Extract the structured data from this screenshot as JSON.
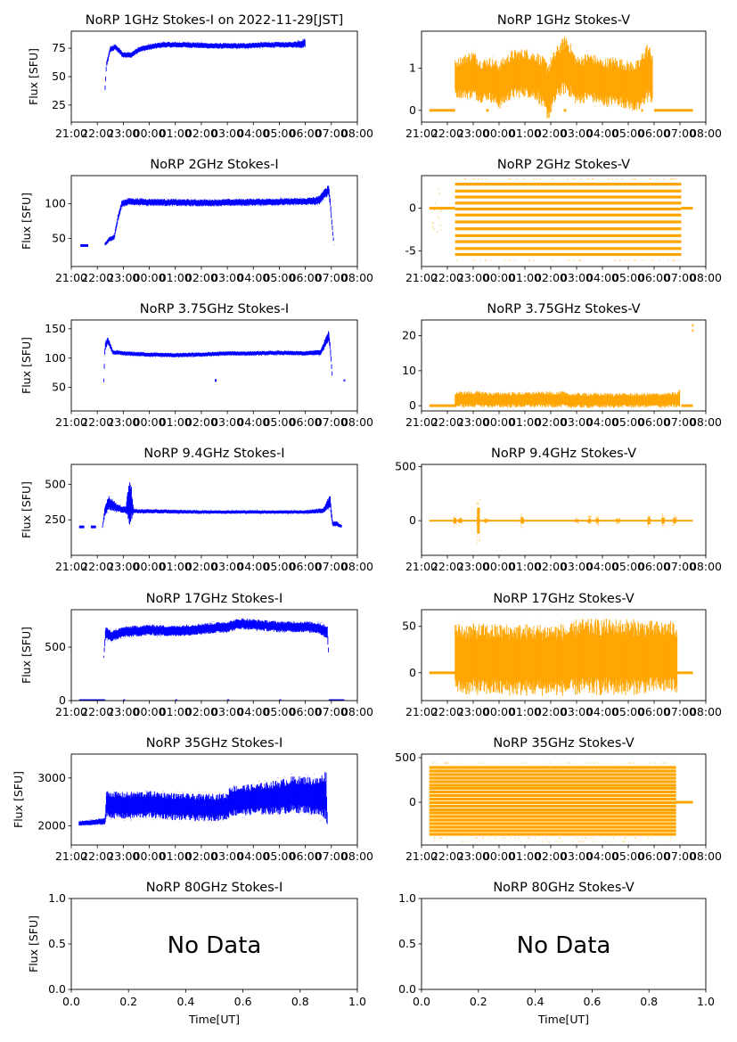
{
  "figure": {
    "x_time_ticks": [
      "21:00",
      "22:00",
      "23:00",
      "00:00",
      "01:00",
      "02:00",
      "03:00",
      "04:00",
      "05:00",
      "06:00",
      "07:00",
      "08:00"
    ],
    "colors": {
      "stokes_i": "#0000ff",
      "stokes_v": "#ffa500",
      "axis": "#000000"
    }
  },
  "chart_data": [
    {
      "id": "i1",
      "type": "scatter",
      "title": "NoRP 1GHz Stokes-I on 2022-11-29[JST]",
      "ylabel": "Flux [SFU]",
      "xlabel": "",
      "xlim": [
        21.0,
        32.0
      ],
      "ylim": [
        10,
        90
      ],
      "yticks": [
        25,
        50,
        75
      ],
      "ytick_labels": [
        "25",
        "50",
        "75"
      ],
      "series": [
        {
          "name": "Stokes-I",
          "band": "poly",
          "x": [
            22.3,
            22.35,
            22.5,
            22.7,
            23.0,
            23.3,
            23.6,
            24.0,
            24.5,
            25.5,
            26.5,
            27.5,
            28.5,
            29.5,
            29.9,
            30.0
          ],
          "y": [
            40,
            60,
            74,
            76,
            69,
            69,
            74,
            76,
            78,
            78,
            77,
            77,
            78,
            78,
            79,
            80
          ],
          "spread": [
            2,
            2,
            2,
            2,
            2,
            2,
            2,
            2,
            2,
            2,
            2,
            2,
            2,
            2,
            3,
            3
          ]
        }
      ]
    },
    {
      "id": "v1",
      "type": "scatter",
      "title": "NoRP 1GHz Stokes-V",
      "ylabel": "",
      "xlabel": "",
      "xlim": [
        21.0,
        32.0
      ],
      "ylim": [
        -0.28,
        1.88
      ],
      "yticks": [
        0,
        1
      ],
      "ytick_labels": [
        "0",
        "1"
      ],
      "series": [
        {
          "name": "Stokes-V",
          "band": "poly",
          "x": [
            22.3,
            22.6,
            23.0,
            23.3,
            23.6,
            24.0,
            24.5,
            25.0,
            25.5,
            25.9,
            26.3,
            26.6,
            27.0,
            27.5,
            28.0,
            28.5,
            29.0,
            29.4,
            29.7,
            29.95
          ],
          "y": [
            0.75,
            0.8,
            0.85,
            0.7,
            0.75,
            0.6,
            0.85,
            0.9,
            0.8,
            0.45,
            0.95,
            1.1,
            0.7,
            0.8,
            0.65,
            0.7,
            0.6,
            0.55,
            0.9,
            0.8
          ],
          "spread": [
            0.35,
            0.4,
            0.45,
            0.4,
            0.4,
            0.45,
            0.45,
            0.45,
            0.45,
            0.55,
            0.5,
            0.55,
            0.45,
            0.45,
            0.45,
            0.45,
            0.45,
            0.5,
            0.55,
            0.5
          ]
        },
        {
          "name": "zero-segments",
          "segments": [
            [
              21.3,
              22.3,
              0
            ],
            [
              23.5,
              23.6,
              0
            ],
            [
              26.5,
              26.6,
              0
            ],
            [
              29.5,
              29.55,
              0
            ],
            [
              30.0,
              31.5,
              0
            ]
          ]
        }
      ]
    },
    {
      "id": "i2",
      "type": "scatter",
      "title": "NoRP 2GHz Stokes-I",
      "ylabel": "Flux [SFU]",
      "xlabel": "",
      "xlim": [
        21.0,
        32.0
      ],
      "ylim": [
        10,
        140
      ],
      "yticks": [
        50,
        100
      ],
      "ytick_labels": [
        "50",
        "100"
      ],
      "series": [
        {
          "name": "Stokes-I",
          "band": "poly",
          "x": [
            22.3,
            22.5,
            22.65,
            22.8,
            22.95,
            23.2,
            24.0,
            26.0,
            28.0,
            30.0,
            30.5,
            30.9,
            30.95,
            31.05,
            31.1
          ],
          "y": [
            42,
            50,
            52,
            80,
            100,
            103,
            102,
            101,
            102,
            103,
            104,
            120,
            104,
            60,
            42
          ],
          "spread": [
            2,
            3,
            3,
            4,
            4,
            4,
            4,
            4,
            4,
            4,
            5,
            6,
            5,
            3,
            2
          ]
        },
        {
          "name": "pre-segment",
          "segments": [
            [
              21.35,
              21.65,
              40
            ]
          ]
        }
      ]
    },
    {
      "id": "v2",
      "type": "scatter",
      "title": "NoRP 2GHz Stokes-V",
      "ylabel": "",
      "xlabel": "",
      "xlim": [
        21.0,
        32.0
      ],
      "ylim": [
        -6.8,
        3.8
      ],
      "yticks": [
        -5,
        0
      ],
      "ytick_labels": [
        "-5",
        "0"
      ],
      "series": [
        {
          "name": "quantized-levels",
          "x_range": [
            22.3,
            31.05
          ],
          "levels": [
            2.8,
            2.0,
            1.3,
            0.6,
            -0.1,
            -0.8,
            -1.6,
            -2.4,
            -3.2,
            -3.9,
            -4.7,
            -5.4
          ],
          "faint_levels": [
            3.4,
            -6.1
          ]
        },
        {
          "name": "zero-segments",
          "segments": [
            [
              21.3,
              22.3,
              0
            ],
            [
              31.05,
              31.5,
              0
            ]
          ]
        }
      ]
    },
    {
      "id": "i3",
      "type": "scatter",
      "title": "NoRP 3.75GHz Stokes-I",
      "ylabel": "Flux [SFU]",
      "xlabel": "",
      "xlim": [
        21.0,
        32.0
      ],
      "ylim": [
        10,
        165
      ],
      "yticks": [
        50,
        100,
        150
      ],
      "ytick_labels": [
        "50",
        "100",
        "150"
      ],
      "series": [
        {
          "name": "Stokes-I",
          "band": "poly",
          "x": [
            22.25,
            22.3,
            22.4,
            22.6,
            23.0,
            24.0,
            25.0,
            26.0,
            27.0,
            28.0,
            29.0,
            30.0,
            30.6,
            30.9,
            30.97,
            31.05
          ],
          "y": [
            62,
            120,
            130,
            110,
            108,
            106,
            105,
            106,
            108,
            108,
            109,
            108,
            110,
            140,
            110,
            60
          ],
          "spread": [
            3,
            6,
            5,
            3,
            3,
            3,
            3,
            3,
            3,
            3,
            3,
            3,
            4,
            8,
            5,
            3
          ]
        },
        {
          "name": "dip",
          "segments": [
            [
              26.52,
              26.55,
              62
            ]
          ]
        },
        {
          "name": "outlier",
          "points": [
            [
              31.5,
              62
            ]
          ]
        }
      ]
    },
    {
      "id": "v3",
      "type": "scatter",
      "title": "NoRP 3.75GHz Stokes-V",
      "ylabel": "",
      "xlabel": "",
      "xlim": [
        21.0,
        32.0
      ],
      "ylim": [
        -1.5,
        24.5
      ],
      "yticks": [
        0,
        10,
        20
      ],
      "ytick_labels": [
        "0",
        "10",
        "20"
      ],
      "series": [
        {
          "name": "Stokes-V",
          "band": "poly",
          "x": [
            22.3,
            23.5,
            23.6,
            26.5,
            26.6,
            29.5,
            30.9,
            31.0
          ],
          "y": [
            1.8,
            1.8,
            1.6,
            1.8,
            1.5,
            1.5,
            1.6,
            2.2
          ],
          "spread": [
            1.8,
            1.8,
            1.7,
            1.8,
            1.7,
            1.6,
            1.7,
            2.4
          ]
        },
        {
          "name": "zero-segments",
          "segments": [
            [
              21.3,
              22.3,
              0
            ],
            [
              31.05,
              31.5,
              0
            ]
          ]
        },
        {
          "name": "outlier",
          "points": [
            [
              31.5,
              21.5
            ],
            [
              31.5,
              23
            ]
          ]
        }
      ]
    },
    {
      "id": "i4",
      "type": "scatter",
      "title": "NoRP 9.4GHz Stokes-I",
      "ylabel": "Flux [SFU]",
      "xlabel": "",
      "xlim": [
        21.0,
        32.0
      ],
      "ylim": [
        0,
        640
      ],
      "yticks": [
        250,
        500
      ],
      "ytick_labels": [
        "250",
        "500"
      ],
      "series": [
        {
          "name": "Stokes-I",
          "band": "poly",
          "x": [
            22.2,
            22.3,
            22.45,
            22.8,
            23.1,
            23.25,
            23.4,
            24.0,
            26.0,
            28.0,
            30.0,
            30.7,
            30.95,
            31.05,
            31.2,
            31.4
          ],
          "y": [
            200,
            320,
            370,
            330,
            320,
            400,
            310,
            310,
            305,
            305,
            305,
            315,
            380,
            220,
            220,
            205
          ],
          "spread": [
            8,
            30,
            40,
            20,
            20,
            150,
            12,
            12,
            10,
            10,
            10,
            15,
            40,
            15,
            15,
            8
          ]
        },
        {
          "name": "pre-segments",
          "segments": [
            [
              21.3,
              21.5,
              200
            ],
            [
              21.75,
              21.95,
              200
            ]
          ]
        }
      ]
    },
    {
      "id": "v4",
      "type": "scatter",
      "title": "NoRP 9.4GHz Stokes-V",
      "ylabel": "",
      "xlabel": "",
      "xlim": [
        21.0,
        32.0
      ],
      "ylim": [
        -320,
        520
      ],
      "yticks": [
        0,
        500
      ],
      "ytick_labels": [
        "0",
        "500"
      ],
      "series": [
        {
          "name": "Stokes-V",
          "band": "bursts",
          "x_range": [
            21.3,
            31.5
          ],
          "base": 0,
          "base_spread": 8,
          "bursts": [
            [
              22.3,
              60
            ],
            [
              22.5,
              50
            ],
            [
              23.2,
              300
            ],
            [
              23.5,
              30
            ],
            [
              24.9,
              70
            ],
            [
              27.0,
              30
            ],
            [
              27.5,
              50
            ],
            [
              27.8,
              50
            ],
            [
              28.6,
              30
            ],
            [
              29.8,
              80
            ],
            [
              30.35,
              70
            ],
            [
              30.8,
              60
            ]
          ]
        }
      ]
    },
    {
      "id": "i5",
      "type": "scatter",
      "title": "NoRP 17GHz Stokes-I",
      "ylabel": "Flux [SFU]",
      "xlabel": "",
      "xlim": [
        21.0,
        32.0
      ],
      "ylim": [
        0,
        850
      ],
      "yticks": [
        0,
        500
      ],
      "ytick_labels": [
        "0",
        "500"
      ],
      "series": [
        {
          "name": "Stokes-I",
          "band": "poly",
          "x": [
            22.25,
            22.32,
            22.5,
            23.0,
            24.0,
            25.0,
            26.0,
            27.0,
            27.5,
            28.0,
            29.0,
            30.0,
            30.5,
            30.85,
            30.9
          ],
          "y": [
            410,
            640,
            600,
            640,
            660,
            650,
            670,
            690,
            720,
            710,
            690,
            690,
            680,
            640,
            410
          ],
          "spread": [
            10,
            50,
            40,
            40,
            40,
            40,
            40,
            40,
            40,
            40,
            40,
            40,
            40,
            50,
            10
          ]
        },
        {
          "name": "zero-segments",
          "segments": [
            [
              21.3,
              22.3,
              0
            ],
            [
              23.0,
              23.05,
              0
            ],
            [
              25.0,
              25.05,
              0
            ],
            [
              27.0,
              27.05,
              0
            ],
            [
              29.0,
              29.05,
              0
            ],
            [
              30.9,
              31.5,
              0
            ]
          ]
        }
      ]
    },
    {
      "id": "v5",
      "type": "scatter",
      "title": "NoRP 17GHz Stokes-V",
      "ylabel": "",
      "xlabel": "",
      "xlim": [
        21.0,
        32.0
      ],
      "ylim": [
        -30,
        68
      ],
      "yticks": [
        0,
        50
      ],
      "ytick_labels": [
        "0",
        "50"
      ],
      "series": [
        {
          "name": "Stokes-V",
          "band": "poly",
          "x": [
            22.3,
            24.0,
            26.0,
            26.8,
            27.0,
            28.0,
            29.0,
            30.0,
            30.9
          ],
          "y": [
            15,
            14,
            14,
            14,
            17,
            17,
            17,
            17,
            17
          ],
          "spread": [
            30,
            30,
            30,
            30,
            32,
            32,
            32,
            30,
            30
          ]
        },
        {
          "name": "zero-segments",
          "segments": [
            [
              21.3,
              22.3,
              0
            ],
            [
              30.9,
              31.5,
              0
            ]
          ]
        }
      ]
    },
    {
      "id": "i6",
      "type": "scatter",
      "title": "NoRP 35GHz Stokes-I",
      "ylabel": "Flux [SFU]",
      "xlabel": "",
      "xlim": [
        21.0,
        32.0
      ],
      "ylim": [
        1600,
        3500
      ],
      "yticks": [
        2000,
        3000
      ],
      "ytick_labels": [
        "2000",
        "3000"
      ],
      "series": [
        {
          "name": "Stokes-I",
          "band": "poly",
          "x": [
            21.3,
            22.0,
            22.3,
            22.35,
            23.0,
            24.0,
            25.0,
            26.0,
            27.0,
            27.1,
            28.0,
            29.0,
            29.5,
            30.0,
            30.5,
            30.8,
            30.85
          ],
          "y": [
            2050,
            2080,
            2100,
            2450,
            2420,
            2450,
            2400,
            2380,
            2400,
            2520,
            2550,
            2600,
            2650,
            2650,
            2600,
            2650,
            2050
          ],
          "spread": [
            40,
            50,
            60,
            220,
            220,
            220,
            220,
            220,
            220,
            250,
            250,
            280,
            300,
            300,
            320,
            400,
            60
          ]
        }
      ]
    },
    {
      "id": "v6",
      "type": "scatter",
      "title": "NoRP 35GHz Stokes-V",
      "ylabel": "",
      "xlabel": "",
      "xlim": [
        21.0,
        32.0
      ],
      "ylim": [
        -480,
        540
      ],
      "yticks": [
        0,
        500
      ],
      "ytick_labels": [
        "0",
        "500"
      ],
      "series": [
        {
          "name": "quantized-levels",
          "x_range": [
            21.3,
            30.85
          ],
          "levels": [
            390,
            350,
            310,
            270,
            230,
            190,
            155,
            115,
            75,
            35,
            -5,
            -45,
            -85,
            -120,
            -160,
            -200,
            -240,
            -280,
            -320,
            -360
          ],
          "faint_levels": [
            440,
            -400,
            -440
          ]
        },
        {
          "name": "zero-segments",
          "segments": [
            [
              30.85,
              31.5,
              0
            ]
          ]
        }
      ]
    },
    {
      "id": "i7",
      "type": "empty",
      "title": "NoRP 80GHz Stokes-I",
      "ylabel": "Flux [SFU]",
      "xlabel": "Time[UT]",
      "xlim": [
        0,
        1
      ],
      "ylim": [
        0,
        1
      ],
      "xticks": [
        0,
        0.2,
        0.4,
        0.6,
        0.8,
        1.0
      ],
      "xtick_labels": [
        "0.0",
        "0.2",
        "0.4",
        "0.6",
        "0.8",
        "1.0"
      ],
      "yticks": [
        0,
        0.5,
        1.0
      ],
      "ytick_labels": [
        "0.0",
        "0.5",
        "1.0"
      ],
      "annotation": "No Data"
    },
    {
      "id": "v7",
      "type": "empty",
      "title": "NoRP 80GHz Stokes-V",
      "ylabel": "",
      "xlabel": "Time[UT]",
      "xlim": [
        0,
        1
      ],
      "ylim": [
        0,
        1
      ],
      "xticks": [
        0,
        0.2,
        0.4,
        0.6,
        0.8,
        1.0
      ],
      "xtick_labels": [
        "0.0",
        "0.2",
        "0.4",
        "0.6",
        "0.8",
        "1.0"
      ],
      "yticks": [
        0,
        0.5,
        1.0
      ],
      "ytick_labels": [
        "0.0",
        "0.5",
        "1.0"
      ],
      "annotation": "No Data"
    }
  ]
}
